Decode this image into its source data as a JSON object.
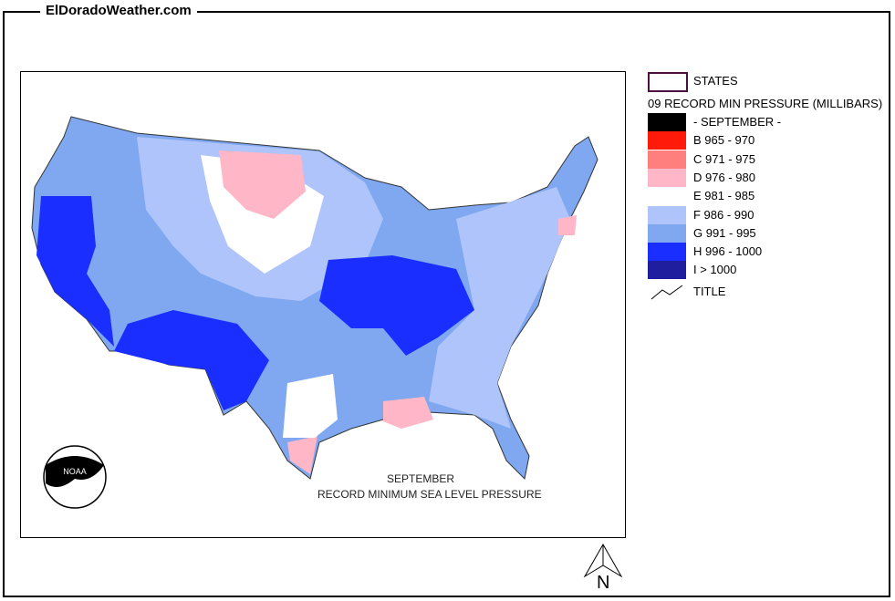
{
  "site_title": "ElDoradoWeather.com",
  "map": {
    "caption_line1": "SEPTEMBER",
    "caption_line2": "RECORD  MINIMUM SEA LEVEL PRESSURE",
    "north_label": "N"
  },
  "legend": {
    "states_label": "STATES",
    "heading": "09 RECORD MIN PRESSURE (MILLIBARS)",
    "items": [
      {
        "label": "- SEPTEMBER -",
        "color": "#000000"
      },
      {
        "label": "B 965 - 970",
        "color": "#ff1a0a"
      },
      {
        "label": "C 971 - 975",
        "color": "#ff7f7f"
      },
      {
        "label": "D 976 - 980",
        "color": "#ffb6c6"
      },
      {
        "label": "E 981 - 985",
        "color": "#ffffff"
      },
      {
        "label": "F 986 - 990",
        "color": "#aec4fb"
      },
      {
        "label": "G 991 - 995",
        "color": "#7fa8f0"
      },
      {
        "label": "H 996 - 1000",
        "color": "#1a2eff"
      },
      {
        "label": "I > 1000",
        "color": "#1e1e9e"
      }
    ],
    "title_label": "TITLE"
  }
}
